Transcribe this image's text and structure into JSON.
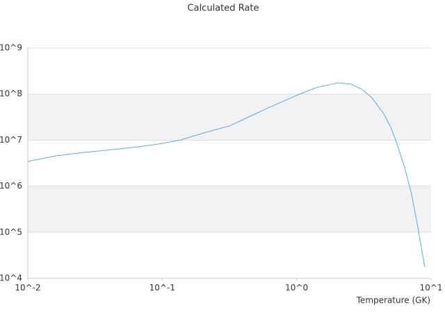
{
  "chart_data": {
    "type": "line",
    "title": "Calculated Rate",
    "x_label": "Temperature (GK)",
    "log_x": true,
    "log_y": true,
    "grid": true,
    "bands": true,
    "x": [
      0.01,
      0.0161,
      0.026,
      0.0418,
      0.0673,
      0.1,
      0.137,
      0.221,
      0.316,
      0.452,
      0.647,
      1.0,
      1.4,
      2.04,
      2.53,
      3.03,
      3.61,
      4.43,
      4.99,
      5.49,
      6.34,
      7.14,
      7.86,
      8.96
    ],
    "series": [
      {
        "name": "Rate",
        "color": "#5ea6e8",
        "values": [
          3450000,
          4560000,
          5400000,
          6200000,
          7200000,
          8500000,
          10100000,
          15400000,
          20300000,
          33100000,
          53800000,
          94000000,
          138000000,
          176000000,
          164000000,
          129000000,
          84600000,
          38000000,
          19600000,
          9500000,
          2610000,
          697000,
          160000,
          18100
        ]
      }
    ],
    "xlim": [
      0.01,
      10
    ],
    "xticks": [
      {
        "value": 0.01,
        "label": "10^-2"
      },
      {
        "value": 0.1,
        "label": "10^-1"
      },
      {
        "value": 1,
        "label": "10^0"
      },
      {
        "value": 10,
        "label": "10^1"
      }
    ],
    "ylim": [
      10000,
      1000000000
    ],
    "yticks": [
      {
        "value": 10000,
        "label": "10^4"
      },
      {
        "value": 100000,
        "label": "10^5"
      },
      {
        "value": 1000000,
        "label": "10^6"
      },
      {
        "value": 10000000,
        "label": "10^7"
      },
      {
        "value": 100000000,
        "label": "10^8"
      },
      {
        "value": 1000000000,
        "label": "10^9"
      }
    ]
  }
}
